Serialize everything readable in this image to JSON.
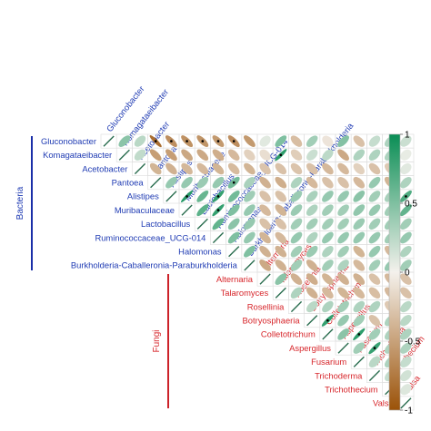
{
  "chart_data": {
    "type": "heatmap",
    "variables": [
      "Gluconobacter",
      "Komagataeibacter",
      "Acetobacter",
      "Pantoea",
      "Alistipes",
      "Muribaculaceae",
      "Lactobacillus",
      "Ruminococcaceae_UCG-014",
      "Halomonas",
      "Burkholderia-Caballeronia-Paraburkholderia",
      "Alternaria",
      "Talaromyces",
      "Rosellinia",
      "Botryosphaeria",
      "Colletotrichum",
      "Aspergillus",
      "Fusarium",
      "Trichoderma",
      "Trichothecium",
      "Valsa"
    ],
    "groups": [
      {
        "name": "Bacteria",
        "members": [
          0,
          1,
          2,
          3,
          4,
          5,
          6,
          7,
          8,
          9
        ],
        "color": "#1f3bb3"
      },
      {
        "name": "Fungi",
        "members": [
          10,
          11,
          12,
          13,
          14,
          15,
          16,
          17,
          18,
          19
        ],
        "color": "#d7262b"
      }
    ],
    "colorbar": {
      "min": -1,
      "max": 1,
      "ticks": [
        "1",
        "0.5",
        "0",
        "-0.5",
        "-1"
      ],
      "values": [
        1,
        0.5,
        0,
        -0.5,
        -1
      ]
    },
    "colors": {
      "positive": "#0a8e55",
      "negative": "#9b5208",
      "neutral": "#f4f1ec",
      "grid": "#dddddd",
      "border": "#b0b0b0",
      "group_line_bacteria": "#1a2fa8",
      "group_line_fungi": "#cc2229"
    },
    "matrix": [
      [
        1,
        0.45,
        0.25,
        -0.82,
        -0.62,
        -0.6,
        -0.58,
        -0.55,
        -0.62,
        -0.55,
        0.08,
        0.5,
        -0.32,
        0.35,
        -0.08,
        0.48,
        -0.3,
        0.2,
        0.3,
        0.18
      ],
      [
        0.45,
        1,
        0.22,
        -0.52,
        -0.52,
        -0.46,
        -0.45,
        -0.42,
        -0.35,
        -0.2,
        -0.12,
        0.85,
        -0.22,
        0.18,
        0.24,
        -0.45,
        0.3,
        0.3,
        0.3,
        0.05
      ],
      [
        0.25,
        0.22,
        1,
        -0.38,
        -0.4,
        -0.36,
        -0.35,
        -0.38,
        -0.34,
        -0.38,
        -0.28,
        -0.3,
        -0.28,
        -0.3,
        -0.35,
        -0.35,
        -0.2,
        -0.3,
        -0.25,
        0.08
      ],
      [
        -0.82,
        -0.52,
        -0.38,
        1,
        0.4,
        0.4,
        0.38,
        0.4,
        0.55,
        0.32,
        -0.4,
        -0.42,
        0.3,
        -0.35,
        -0.3,
        -0.3,
        -0.35,
        0.4,
        -0.38,
        0.3
      ],
      [
        -0.62,
        -0.52,
        -0.4,
        0.4,
        1,
        0.88,
        0.6,
        0.82,
        0.55,
        0.36,
        -0.3,
        -0.3,
        0.38,
        0.32,
        0.4,
        0.4,
        0.45,
        0.35,
        0.32,
        0.7
      ],
      [
        -0.6,
        -0.46,
        -0.36,
        0.4,
        0.88,
        1,
        0.65,
        0.82,
        0.5,
        0.4,
        -0.35,
        -0.38,
        0.38,
        0.3,
        0.35,
        0.35,
        0.42,
        0.4,
        0.35,
        0.62
      ],
      [
        -0.58,
        -0.45,
        -0.35,
        0.38,
        0.6,
        0.65,
        1,
        0.62,
        0.45,
        0.4,
        -0.3,
        -0.3,
        0.35,
        0.35,
        0.35,
        0.35,
        0.38,
        0.35,
        0.35,
        0.35
      ],
      [
        -0.55,
        -0.42,
        -0.38,
        0.4,
        0.82,
        0.82,
        0.62,
        1,
        0.5,
        0.4,
        -0.38,
        -0.35,
        0.4,
        0.3,
        0.4,
        0.4,
        0.4,
        0.4,
        0.35,
        0.4
      ],
      [
        -0.62,
        -0.35,
        -0.34,
        0.55,
        0.55,
        0.5,
        0.45,
        0.5,
        1,
        0.5,
        -0.4,
        -0.4,
        0.35,
        0.38,
        0.3,
        0.35,
        -0.38,
        0.4,
        -0.35,
        0.3
      ],
      [
        -0.55,
        -0.2,
        -0.38,
        0.32,
        0.36,
        0.4,
        0.4,
        0.4,
        0.5,
        1,
        -0.45,
        -0.4,
        0.35,
        -0.4,
        0.35,
        0.3,
        -0.35,
        0.35,
        0.4,
        0.35
      ],
      [
        0.08,
        -0.12,
        -0.28,
        -0.4,
        -0.3,
        -0.35,
        -0.3,
        -0.38,
        -0.4,
        -0.45,
        1,
        0.45,
        -0.4,
        -0.42,
        -0.38,
        -0.4,
        -0.4,
        -0.3,
        -0.35,
        -0.3
      ],
      [
        0.5,
        0.85,
        -0.3,
        -0.42,
        -0.3,
        -0.38,
        -0.3,
        -0.35,
        -0.4,
        -0.4,
        0.45,
        1,
        0.3,
        -0.4,
        -0.35,
        -0.38,
        -0.35,
        -0.32,
        -0.35,
        -0.3
      ],
      [
        -0.32,
        -0.22,
        -0.28,
        0.3,
        0.38,
        0.38,
        0.35,
        0.4,
        0.35,
        0.35,
        -0.4,
        0.3,
        1,
        0.25,
        0.3,
        0.35,
        0.3,
        0.3,
        -0.25,
        0.25
      ],
      [
        0.35,
        0.18,
        -0.3,
        -0.35,
        0.32,
        0.3,
        0.35,
        0.3,
        0.38,
        -0.4,
        -0.42,
        -0.4,
        0.25,
        1,
        0.82,
        0.4,
        0.35,
        -0.3,
        0.3,
        0.25
      ],
      [
        -0.08,
        0.24,
        -0.35,
        -0.3,
        0.4,
        0.35,
        0.35,
        0.4,
        0.3,
        0.35,
        -0.38,
        -0.35,
        0.3,
        0.82,
        1,
        0.45,
        0.85,
        0.35,
        0.3,
        0.3
      ],
      [
        0.48,
        -0.45,
        -0.35,
        -0.3,
        0.4,
        0.35,
        0.35,
        0.4,
        0.35,
        0.3,
        -0.4,
        -0.38,
        0.35,
        0.4,
        0.45,
        1,
        0.35,
        0.8,
        0.3,
        0.3
      ],
      [
        -0.3,
        0.3,
        -0.2,
        -0.35,
        0.45,
        0.42,
        0.38,
        0.4,
        -0.38,
        -0.35,
        -0.4,
        -0.35,
        0.3,
        0.35,
        0.85,
        0.35,
        1,
        0.25,
        0.3,
        0.2
      ],
      [
        0.2,
        0.3,
        -0.3,
        0.4,
        0.35,
        0.4,
        0.35,
        0.4,
        0.4,
        0.35,
        -0.3,
        -0.32,
        0.3,
        -0.3,
        0.35,
        0.8,
        0.25,
        1,
        0.2,
        0.15
      ],
      [
        0.3,
        0.3,
        -0.25,
        -0.38,
        0.32,
        0.35,
        0.35,
        0.35,
        -0.35,
        0.4,
        -0.35,
        -0.35,
        -0.25,
        0.3,
        0.3,
        0.3,
        0.3,
        0.2,
        1,
        0.1
      ],
      [
        0.18,
        0.05,
        0.08,
        0.3,
        0.7,
        0.62,
        0.35,
        0.4,
        0.3,
        0.35,
        -0.3,
        -0.3,
        0.25,
        0.25,
        0.3,
        0.3,
        0.2,
        0.15,
        0.1,
        1
      ]
    ],
    "significant": [
      [
        0,
        3
      ],
      [
        0,
        4
      ],
      [
        0,
        5
      ],
      [
        0,
        6
      ],
      [
        0,
        7
      ],
      [
        0,
        8
      ],
      [
        1,
        11
      ],
      [
        3,
        8
      ],
      [
        4,
        5
      ],
      [
        4,
        7
      ],
      [
        5,
        7
      ],
      [
        4,
        19
      ],
      [
        13,
        14
      ],
      [
        14,
        16
      ],
      [
        15,
        17
      ]
    ],
    "diagonal": "line"
  }
}
